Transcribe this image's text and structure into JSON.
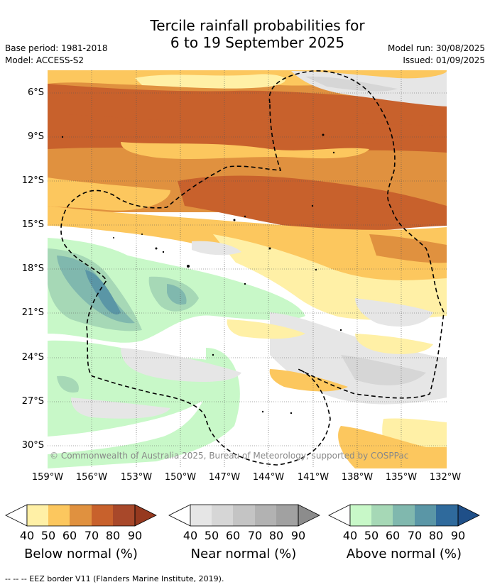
{
  "header": {
    "title_line1": "Tercile rainfall probabilities for",
    "title_line2": "6 to 19 September 2025",
    "base_period": "Base period: 1981-2018",
    "model": "Model: ACCESS-S2",
    "model_run": "Model run: 30/08/2025",
    "issued": "Issued: 01/09/2025"
  },
  "map": {
    "lon_labels": [
      "159°W",
      "156°W",
      "153°W",
      "150°W",
      "147°W",
      "144°W",
      "141°W",
      "138°W",
      "135°W",
      "132°W"
    ],
    "lat_labels": [
      "6°S",
      "9°S",
      "12°S",
      "15°S",
      "18°S",
      "21°S",
      "24°S",
      "27°S",
      "30°S"
    ],
    "copyright": "© Commonwealth of Australia 2025, Bureau of Meteorology, supported by COSPPac"
  },
  "colorbars": [
    {
      "title": "Below normal (%)",
      "ticks": [
        "40",
        "50",
        "60",
        "70",
        "80",
        "90"
      ],
      "colors": [
        "#fff0a6",
        "#fcc75e",
        "#e0913f",
        "#c8612c",
        "#a8482a",
        "#96391f"
      ]
    },
    {
      "title": "Near normal (%)",
      "ticks": [
        "40",
        "50",
        "60",
        "70",
        "80",
        "90"
      ],
      "colors": [
        "#e6e6e6",
        "#d6d6d6",
        "#c4c4c4",
        "#b2b2b2",
        "#a1a1a1",
        "#8c8c8c"
      ]
    },
    {
      "title": "Above normal (%)",
      "ticks": [
        "40",
        "50",
        "60",
        "70",
        "80",
        "90"
      ],
      "colors": [
        "#c8f8c8",
        "#a6d8b6",
        "#80b8ae",
        "#5a96a6",
        "#2f6a9c",
        "#1f4f88"
      ]
    }
  ],
  "footer": "--  --  -- EEZ border V11 (Flanders Marine Institute, 2019)."
}
